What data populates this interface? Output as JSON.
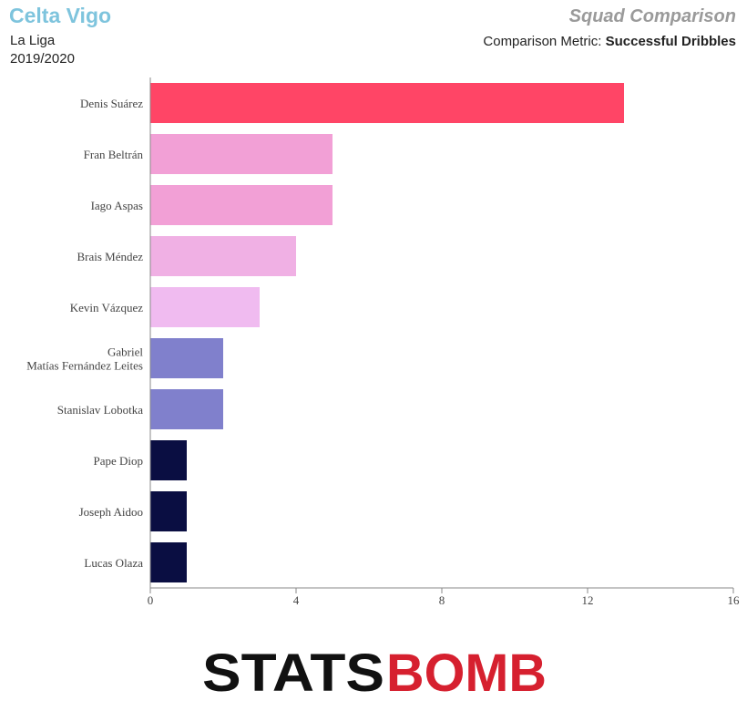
{
  "header": {
    "team": "Celta Vigo",
    "league": "La Liga",
    "season": "2019/2020",
    "title": "Squad Comparison",
    "metric_label": "Comparison Metric:",
    "metric_value": "Successful Dribbles"
  },
  "logo": {
    "text_left": "STATS",
    "text_right": "BOMB"
  },
  "colors": {
    "team": "#7ec4dd",
    "title": "#9a9a9a",
    "logo_black": "#111111",
    "logo_red": "#d6202f"
  },
  "chart_data": {
    "type": "bar",
    "orientation": "horizontal",
    "categories": [
      "Denis Suárez",
      "Fran Beltrán",
      "Iago Aspas",
      "Brais Méndez",
      "Kevin Vázquez",
      "Gabriel Matías Fernández Leites",
      "Stanislav Lobotka",
      "Pape Diop",
      "Joseph Aidoo",
      "Lucas Olaza"
    ],
    "values": [
      13,
      5,
      5,
      4,
      3,
      2,
      2,
      1,
      1,
      1
    ],
    "bar_colors": [
      "#ff4566",
      "#f2a0d6",
      "#f2a0d6",
      "#f0b0e4",
      "#f0bbf0",
      "#8080cc",
      "#8080cc",
      "#0a0e42",
      "#0a0e42",
      "#0a0e42"
    ],
    "xlim": [
      0,
      16
    ],
    "xticks": [
      0,
      4,
      8,
      12,
      16
    ],
    "grid": false
  }
}
